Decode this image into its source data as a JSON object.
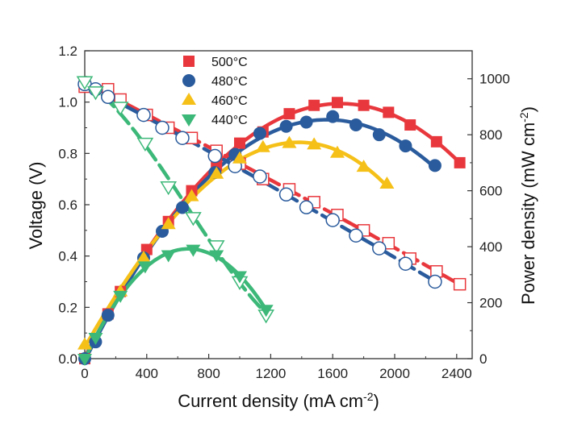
{
  "chart_data": {
    "type": "scatter",
    "xlabel": "Current density (mA cm",
    "xlabel_sup": "-2",
    "xlabel_end": ")",
    "ylabel_left": "Voltage (V)",
    "ylabel_right": "Power density (mW cm",
    "ylabel_right_sup": "-2",
    "ylabel_right_end": ")",
    "xlim": [
      0,
      2500
    ],
    "ylim_left": [
      0,
      1.2
    ],
    "ylim_right": [
      0,
      1100
    ],
    "x_ticks": [
      0,
      400,
      800,
      1200,
      1600,
      2000,
      2400
    ],
    "y_left_ticks": [
      "0.0",
      "0.2",
      "0.4",
      "0.6",
      "0.8",
      "1.0",
      "1.2"
    ],
    "y_right_ticks": [
      "0",
      "200",
      "400",
      "600",
      "800",
      "1000"
    ],
    "legend_position": "top-center",
    "series": [
      {
        "name": "500°C",
        "color": "#e8383d",
        "marker": "square",
        "voltage": {
          "x": [
            0,
            150,
            230,
            400,
            540,
            690,
            850,
            1000,
            1150,
            1320,
            1480,
            1630,
            1800,
            1960,
            2100,
            2270,
            2420
          ],
          "y": [
            1.06,
            1.05,
            1.01,
            0.95,
            0.9,
            0.86,
            0.81,
            0.76,
            0.7,
            0.66,
            0.61,
            0.56,
            0.5,
            0.45,
            0.39,
            0.34,
            0.29
          ]
        },
        "power": {
          "x": [
            0,
            150,
            230,
            400,
            540,
            690,
            850,
            1000,
            1150,
            1320,
            1480,
            1630,
            1800,
            1960,
            2100,
            2270,
            2420
          ],
          "y": [
            0,
            160,
            240,
            390,
            490,
            600,
            690,
            770,
            810,
            875,
            905,
            915,
            905,
            880,
            835,
            775,
            700
          ]
        }
      },
      {
        "name": "480°C",
        "color": "#2a5b9c",
        "marker": "circle",
        "voltage": {
          "x": [
            0,
            70,
            150,
            380,
            500,
            630,
            840,
            970,
            1130,
            1300,
            1430,
            1600,
            1750,
            1900,
            2070,
            2260
          ],
          "y": [
            1.07,
            1.05,
            1.02,
            0.95,
            0.9,
            0.86,
            0.79,
            0.75,
            0.71,
            0.64,
            0.59,
            0.54,
            0.48,
            0.43,
            0.37,
            0.3
          ]
        },
        "power": {
          "x": [
            0,
            70,
            150,
            380,
            500,
            630,
            840,
            970,
            1130,
            1300,
            1430,
            1600,
            1750,
            1900,
            2070,
            2260
          ],
          "y": [
            0,
            60,
            155,
            360,
            455,
            540,
            665,
            730,
            805,
            830,
            845,
            865,
            835,
            800,
            760,
            690
          ]
        }
      },
      {
        "name": "460°C",
        "color": "#f5c018",
        "marker": "triangle-up",
        "power": {
          "x": [
            0,
            230,
            380,
            540,
            690,
            850,
            1000,
            1150,
            1320,
            1480,
            1630,
            1800,
            1950
          ],
          "y": [
            50,
            240,
            360,
            480,
            580,
            660,
            715,
            755,
            770,
            765,
            735,
            685,
            625
          ]
        }
      },
      {
        "name": "440°C",
        "color": "#3cb878",
        "marker": "triangle-down",
        "voltage": {
          "x": [
            0,
            70,
            230,
            390,
            540,
            700,
            850,
            1000,
            1170
          ],
          "y": [
            1.08,
            1.04,
            0.98,
            0.84,
            0.67,
            0.55,
            0.44,
            0.3,
            0.17
          ]
        },
        "power": {
          "x": [
            0,
            70,
            230,
            390,
            540,
            700,
            850,
            1000,
            1170
          ],
          "y": [
            0,
            75,
            225,
            330,
            370,
            390,
            370,
            295,
            175
          ]
        }
      }
    ]
  }
}
